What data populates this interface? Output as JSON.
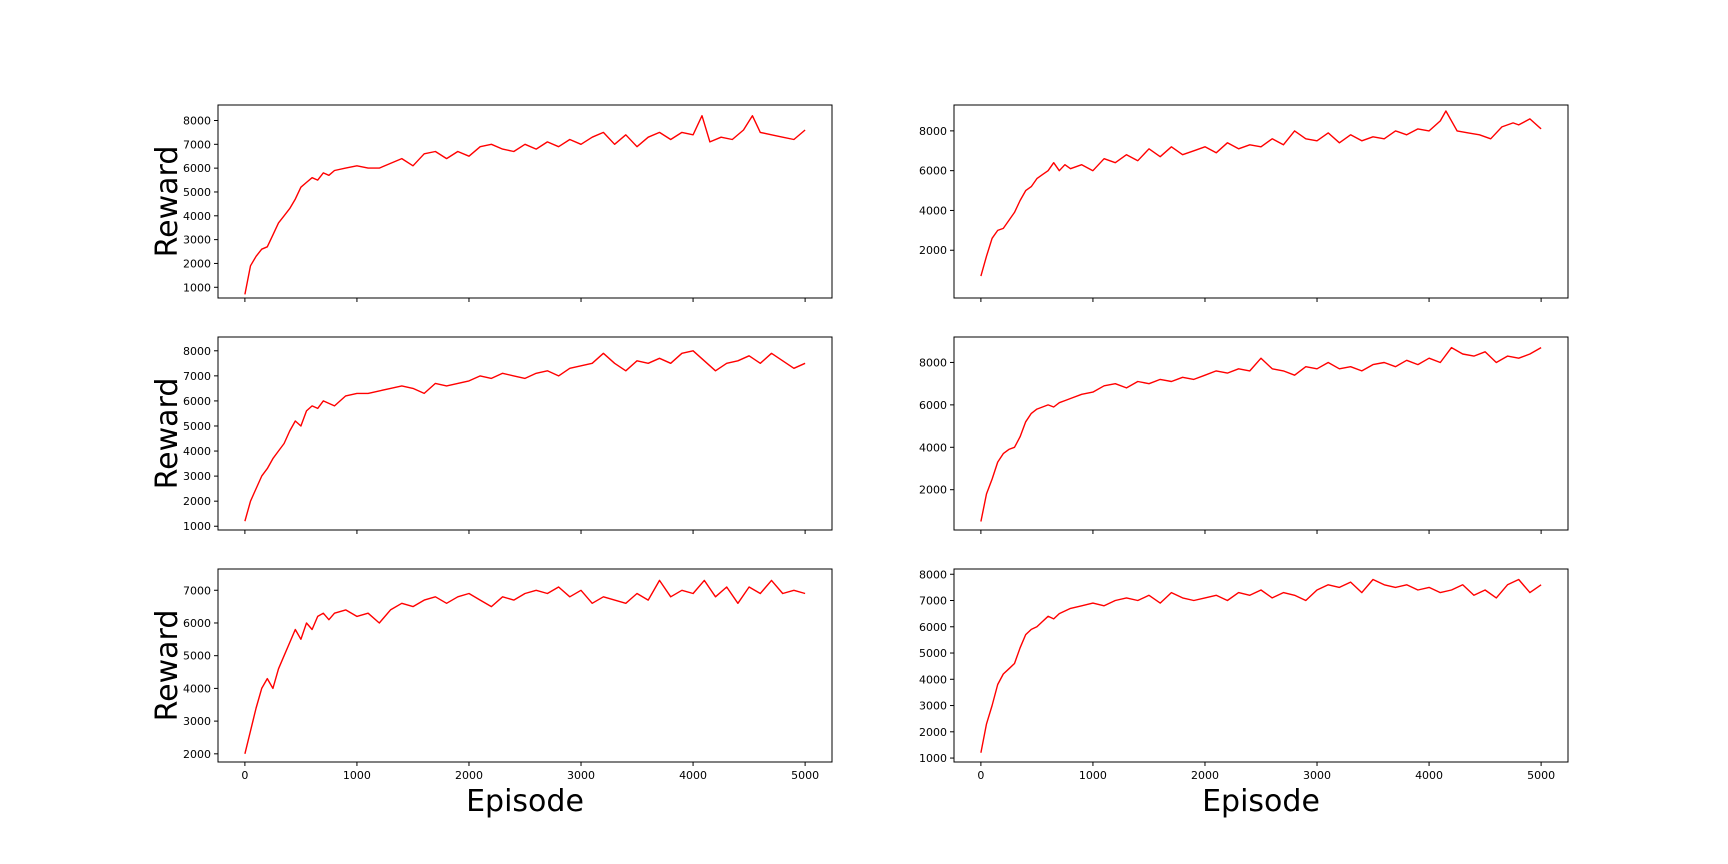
{
  "style": {
    "line_color": "#ff0000",
    "frame_color": "#000000"
  },
  "chart_data": [
    {
      "type": "line",
      "panel": "row1-col1",
      "ylabel": "Reward",
      "xlabel": "",
      "xlim": [
        -240,
        5240
      ],
      "ylim": [
        550,
        8650
      ],
      "x_ticks": [
        0,
        1000,
        2000,
        3000,
        4000,
        5000
      ],
      "x_tick_labels_visible": false,
      "y_ticks": [
        1000,
        2000,
        3000,
        4000,
        5000,
        6000,
        7000,
        8000
      ],
      "y_tick_labels": [
        "1000",
        "2000",
        "3000",
        "4000",
        "5000",
        "6000",
        "7000",
        "8000"
      ],
      "grid": false,
      "series": [
        {
          "color": "#ff0000",
          "x": [
            0,
            50,
            100,
            150,
            200,
            250,
            300,
            350,
            400,
            450,
            500,
            550,
            600,
            650,
            700,
            750,
            800,
            900,
            1000,
            1100,
            1200,
            1300,
            1400,
            1500,
            1600,
            1700,
            1800,
            1900,
            2000,
            2100,
            2200,
            2300,
            2400,
            2500,
            2600,
            2700,
            2800,
            2900,
            3000,
            3100,
            3200,
            3300,
            3400,
            3500,
            3600,
            3700,
            3800,
            3900,
            4000,
            4080,
            4150,
            4250,
            4350,
            4450,
            4530,
            4600,
            4700,
            4800,
            4900,
            5000
          ],
          "values": [
            700,
            1900,
            2300,
            2600,
            2700,
            3200,
            3700,
            4000,
            4300,
            4700,
            5200,
            5400,
            5600,
            5500,
            5800,
            5700,
            5900,
            6000,
            6100,
            6000,
            6000,
            6200,
            6400,
            6100,
            6600,
            6700,
            6400,
            6700,
            6500,
            6900,
            7000,
            6800,
            6700,
            7000,
            6800,
            7100,
            6900,
            7200,
            7000,
            7300,
            7500,
            7000,
            7400,
            6900,
            7300,
            7500,
            7200,
            7500,
            7400,
            8200,
            7100,
            7300,
            7200,
            7600,
            8200,
            7500,
            7400,
            7300,
            7200,
            7600
          ]
        }
      ]
    },
    {
      "type": "line",
      "panel": "row1-col2",
      "ylabel": "",
      "xlabel": "",
      "xlim": [
        -240,
        5240
      ],
      "ylim": [
        -400,
        9300
      ],
      "x_ticks": [
        0,
        1000,
        2000,
        3000,
        4000,
        5000
      ],
      "x_tick_labels_visible": false,
      "y_ticks": [
        2000,
        4000,
        6000,
        8000
      ],
      "y_tick_labels": [
        "2000",
        "4000",
        "6000",
        "8000"
      ],
      "grid": false,
      "series": [
        {
          "color": "#ff0000",
          "x": [
            0,
            50,
            100,
            150,
            200,
            250,
            300,
            350,
            400,
            450,
            500,
            550,
            600,
            650,
            700,
            750,
            800,
            900,
            1000,
            1100,
            1200,
            1300,
            1400,
            1500,
            1600,
            1700,
            1800,
            1900,
            2000,
            2100,
            2200,
            2300,
            2400,
            2500,
            2600,
            2700,
            2800,
            2900,
            3000,
            3100,
            3200,
            3300,
            3400,
            3500,
            3600,
            3700,
            3800,
            3900,
            4000,
            4100,
            4150,
            4250,
            4350,
            4450,
            4550,
            4650,
            4750,
            4800,
            4900,
            5000
          ],
          "values": [
            700,
            1700,
            2600,
            3000,
            3100,
            3500,
            3900,
            4500,
            5000,
            5200,
            5600,
            5800,
            6000,
            6400,
            6000,
            6300,
            6100,
            6300,
            6000,
            6600,
            6400,
            6800,
            6500,
            7100,
            6700,
            7200,
            6800,
            7000,
            7200,
            6900,
            7400,
            7100,
            7300,
            7200,
            7600,
            7300,
            8000,
            7600,
            7500,
            7900,
            7400,
            7800,
            7500,
            7700,
            7600,
            8000,
            7800,
            8100,
            8000,
            8500,
            9000,
            8000,
            7900,
            7800,
            7600,
            8200,
            8400,
            8300,
            8600,
            8100
          ]
        }
      ]
    },
    {
      "type": "line",
      "panel": "row2-col1",
      "ylabel": "Reward",
      "xlabel": "",
      "xlim": [
        -240,
        5240
      ],
      "ylim": [
        850,
        8550
      ],
      "x_ticks": [
        0,
        1000,
        2000,
        3000,
        4000,
        5000
      ],
      "x_tick_labels_visible": false,
      "y_ticks": [
        1000,
        2000,
        3000,
        4000,
        5000,
        6000,
        7000,
        8000
      ],
      "y_tick_labels": [
        "1000",
        "2000",
        "3000",
        "4000",
        "5000",
        "6000",
        "7000",
        "8000"
      ],
      "grid": false,
      "series": [
        {
          "color": "#ff0000",
          "x": [
            0,
            50,
            100,
            150,
            200,
            250,
            300,
            350,
            400,
            450,
            500,
            550,
            600,
            650,
            700,
            750,
            800,
            900,
            1000,
            1100,
            1200,
            1300,
            1400,
            1500,
            1600,
            1700,
            1800,
            1900,
            2000,
            2100,
            2200,
            2300,
            2400,
            2500,
            2600,
            2700,
            2800,
            2900,
            3000,
            3100,
            3200,
            3300,
            3400,
            3500,
            3600,
            3700,
            3800,
            3900,
            4000,
            4100,
            4200,
            4300,
            4400,
            4500,
            4600,
            4700,
            4800,
            4900,
            5000
          ],
          "values": [
            1200,
            2000,
            2500,
            3000,
            3300,
            3700,
            4000,
            4300,
            4800,
            5200,
            5000,
            5600,
            5800,
            5700,
            6000,
            5900,
            5800,
            6200,
            6300,
            6300,
            6400,
            6500,
            6600,
            6500,
            6300,
            6700,
            6600,
            6700,
            6800,
            7000,
            6900,
            7100,
            7000,
            6900,
            7100,
            7200,
            7000,
            7300,
            7400,
            7500,
            7900,
            7500,
            7200,
            7600,
            7500,
            7700,
            7500,
            7900,
            8000,
            7600,
            7200,
            7500,
            7600,
            7800,
            7500,
            7900,
            7600,
            7300,
            7500
          ]
        }
      ]
    },
    {
      "type": "line",
      "panel": "row2-col2",
      "ylabel": "",
      "xlabel": "",
      "xlim": [
        -240,
        5240
      ],
      "ylim": [
        100,
        9200
      ],
      "x_ticks": [
        0,
        1000,
        2000,
        3000,
        4000,
        5000
      ],
      "x_tick_labels_visible": false,
      "y_ticks": [
        2000,
        4000,
        6000,
        8000
      ],
      "y_tick_labels": [
        "2000",
        "4000",
        "6000",
        "8000"
      ],
      "grid": false,
      "series": [
        {
          "color": "#ff0000",
          "x": [
            0,
            50,
            100,
            150,
            200,
            250,
            300,
            350,
            400,
            450,
            500,
            550,
            600,
            650,
            700,
            750,
            800,
            900,
            1000,
            1100,
            1200,
            1300,
            1400,
            1500,
            1600,
            1700,
            1800,
            1900,
            2000,
            2100,
            2200,
            2300,
            2400,
            2500,
            2600,
            2700,
            2800,
            2900,
            3000,
            3100,
            3200,
            3300,
            3400,
            3500,
            3600,
            3700,
            3800,
            3900,
            4000,
            4100,
            4200,
            4300,
            4400,
            4500,
            4600,
            4700,
            4800,
            4900,
            5000
          ],
          "values": [
            500,
            1800,
            2500,
            3300,
            3700,
            3900,
            4000,
            4500,
            5200,
            5600,
            5800,
            5900,
            6000,
            5900,
            6100,
            6200,
            6300,
            6500,
            6600,
            6900,
            7000,
            6800,
            7100,
            7000,
            7200,
            7100,
            7300,
            7200,
            7400,
            7600,
            7500,
            7700,
            7600,
            8200,
            7700,
            7600,
            7400,
            7800,
            7700,
            8000,
            7700,
            7800,
            7600,
            7900,
            8000,
            7800,
            8100,
            7900,
            8200,
            8000,
            8700,
            8400,
            8300,
            8500,
            8000,
            8300,
            8200,
            8400,
            8700
          ]
        }
      ]
    },
    {
      "type": "line",
      "panel": "row3-col1",
      "ylabel": "Reward",
      "xlabel": "Episode",
      "xlim": [
        -240,
        5240
      ],
      "ylim": [
        1750,
        7650
      ],
      "x_ticks": [
        0,
        1000,
        2000,
        3000,
        4000,
        5000
      ],
      "x_tick_labels": [
        "0",
        "1000",
        "2000",
        "3000",
        "4000",
        "5000"
      ],
      "x_tick_labels_visible": true,
      "y_ticks": [
        2000,
        3000,
        4000,
        5000,
        6000,
        7000
      ],
      "y_tick_labels": [
        "2000",
        "3000",
        "4000",
        "5000",
        "6000",
        "7000"
      ],
      "grid": false,
      "series": [
        {
          "color": "#ff0000",
          "x": [
            0,
            50,
            100,
            150,
            200,
            250,
            300,
            350,
            400,
            450,
            500,
            550,
            600,
            650,
            700,
            750,
            800,
            900,
            1000,
            1100,
            1200,
            1300,
            1400,
            1500,
            1600,
            1700,
            1800,
            1900,
            2000,
            2100,
            2200,
            2300,
            2400,
            2500,
            2600,
            2700,
            2800,
            2900,
            3000,
            3100,
            3200,
            3300,
            3400,
            3500,
            3600,
            3700,
            3800,
            3900,
            4000,
            4100,
            4200,
            4300,
            4400,
            4500,
            4600,
            4700,
            4800,
            4900,
            5000
          ],
          "values": [
            2000,
            2700,
            3400,
            4000,
            4300,
            4000,
            4600,
            5000,
            5400,
            5800,
            5500,
            6000,
            5800,
            6200,
            6300,
            6100,
            6300,
            6400,
            6200,
            6300,
            6000,
            6400,
            6600,
            6500,
            6700,
            6800,
            6600,
            6800,
            6900,
            6700,
            6500,
            6800,
            6700,
            6900,
            7000,
            6900,
            7100,
            6800,
            7000,
            6600,
            6800,
            6700,
            6600,
            6900,
            6700,
            7300,
            6800,
            7000,
            6900,
            7300,
            6800,
            7100,
            6600,
            7100,
            6900,
            7300,
            6900,
            7000,
            6900
          ]
        }
      ]
    },
    {
      "type": "line",
      "panel": "row3-col2",
      "ylabel": "",
      "xlabel": "Episode",
      "xlim": [
        -240,
        5240
      ],
      "ylim": [
        850,
        8200
      ],
      "x_ticks": [
        0,
        1000,
        2000,
        3000,
        4000,
        5000
      ],
      "x_tick_labels": [
        "0",
        "1000",
        "2000",
        "3000",
        "4000",
        "5000"
      ],
      "x_tick_labels_visible": true,
      "y_ticks": [
        1000,
        2000,
        3000,
        4000,
        5000,
        6000,
        7000,
        8000
      ],
      "y_tick_labels": [
        "1000",
        "2000",
        "3000",
        "4000",
        "5000",
        "6000",
        "7000",
        "8000"
      ],
      "grid": false,
      "series": [
        {
          "color": "#ff0000",
          "x": [
            0,
            50,
            100,
            150,
            200,
            250,
            300,
            350,
            400,
            450,
            500,
            550,
            600,
            650,
            700,
            750,
            800,
            900,
            1000,
            1100,
            1200,
            1300,
            1400,
            1500,
            1600,
            1700,
            1800,
            1900,
            2000,
            2100,
            2200,
            2300,
            2400,
            2500,
            2600,
            2700,
            2800,
            2900,
            3000,
            3100,
            3200,
            3300,
            3400,
            3500,
            3600,
            3700,
            3800,
            3900,
            4000,
            4100,
            4200,
            4300,
            4400,
            4500,
            4600,
            4700,
            4800,
            4900,
            5000
          ],
          "values": [
            1200,
            2300,
            3000,
            3800,
            4200,
            4400,
            4600,
            5200,
            5700,
            5900,
            6000,
            6200,
            6400,
            6300,
            6500,
            6600,
            6700,
            6800,
            6900,
            6800,
            7000,
            7100,
            7000,
            7200,
            6900,
            7300,
            7100,
            7000,
            7100,
            7200,
            7000,
            7300,
            7200,
            7400,
            7100,
            7300,
            7200,
            7000,
            7400,
            7600,
            7500,
            7700,
            7300,
            7800,
            7600,
            7500,
            7600,
            7400,
            7500,
            7300,
            7400,
            7600,
            7200,
            7400,
            7100,
            7600,
            7800,
            7300,
            7600
          ]
        }
      ]
    }
  ]
}
